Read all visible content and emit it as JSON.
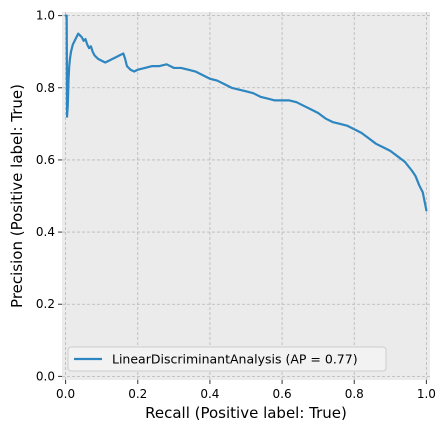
{
  "chart_data": {
    "type": "line",
    "title": "",
    "xlabel": "Recall (Positive label: True)",
    "ylabel": "Precision (Positive label: True)",
    "xlim": [
      -0.01,
      1.01
    ],
    "ylim": [
      -0.01,
      1.01
    ],
    "xticks": [
      0.0,
      0.2,
      0.4,
      0.6,
      0.8,
      1.0
    ],
    "xtick_labels": [
      "0.0",
      "0.2",
      "0.4",
      "0.6",
      "0.8",
      "1.0"
    ],
    "yticks": [
      0.0,
      0.2,
      0.4,
      0.6,
      0.8,
      1.0
    ],
    "ytick_labels": [
      "0.0",
      "0.2",
      "0.4",
      "0.6",
      "0.8",
      "1.0"
    ],
    "grid": true,
    "legend_position": "lower-left",
    "colors": {
      "plot_background": "#ebebeb",
      "grid": "#b8b8b8",
      "line": "#2e86c1",
      "legend_background": "#f2f2f2",
      "legend_border": "#cccccc"
    },
    "series": [
      {
        "name": "LinearDiscriminantAnalysis (AP = 0.77)",
        "x": [
          0.0,
          0.003,
          0.004,
          0.006,
          0.008,
          0.01,
          0.012,
          0.015,
          0.02,
          0.025,
          0.03,
          0.035,
          0.04,
          0.045,
          0.05,
          0.055,
          0.06,
          0.065,
          0.07,
          0.075,
          0.08,
          0.09,
          0.1,
          0.11,
          0.12,
          0.13,
          0.14,
          0.15,
          0.16,
          0.165,
          0.17,
          0.18,
          0.19,
          0.2,
          0.22,
          0.24,
          0.26,
          0.28,
          0.3,
          0.32,
          0.34,
          0.36,
          0.38,
          0.4,
          0.42,
          0.44,
          0.46,
          0.48,
          0.5,
          0.52,
          0.54,
          0.56,
          0.58,
          0.6,
          0.62,
          0.64,
          0.66,
          0.68,
          0.7,
          0.72,
          0.74,
          0.76,
          0.78,
          0.8,
          0.82,
          0.84,
          0.86,
          0.88,
          0.9,
          0.92,
          0.94,
          0.96,
          0.97,
          0.98,
          0.99,
          1.0
        ],
        "y": [
          1.0,
          1.0,
          0.72,
          0.75,
          0.82,
          0.86,
          0.88,
          0.9,
          0.92,
          0.93,
          0.94,
          0.95,
          0.945,
          0.94,
          0.93,
          0.935,
          0.92,
          0.91,
          0.915,
          0.9,
          0.89,
          0.88,
          0.875,
          0.87,
          0.875,
          0.88,
          0.885,
          0.89,
          0.895,
          0.88,
          0.86,
          0.85,
          0.845,
          0.85,
          0.855,
          0.86,
          0.86,
          0.865,
          0.855,
          0.855,
          0.85,
          0.845,
          0.835,
          0.825,
          0.82,
          0.81,
          0.8,
          0.795,
          0.79,
          0.785,
          0.775,
          0.77,
          0.765,
          0.765,
          0.765,
          0.76,
          0.75,
          0.74,
          0.73,
          0.715,
          0.705,
          0.7,
          0.695,
          0.685,
          0.675,
          0.66,
          0.645,
          0.635,
          0.625,
          0.61,
          0.595,
          0.57,
          0.555,
          0.53,
          0.51,
          0.46
        ]
      }
    ]
  }
}
